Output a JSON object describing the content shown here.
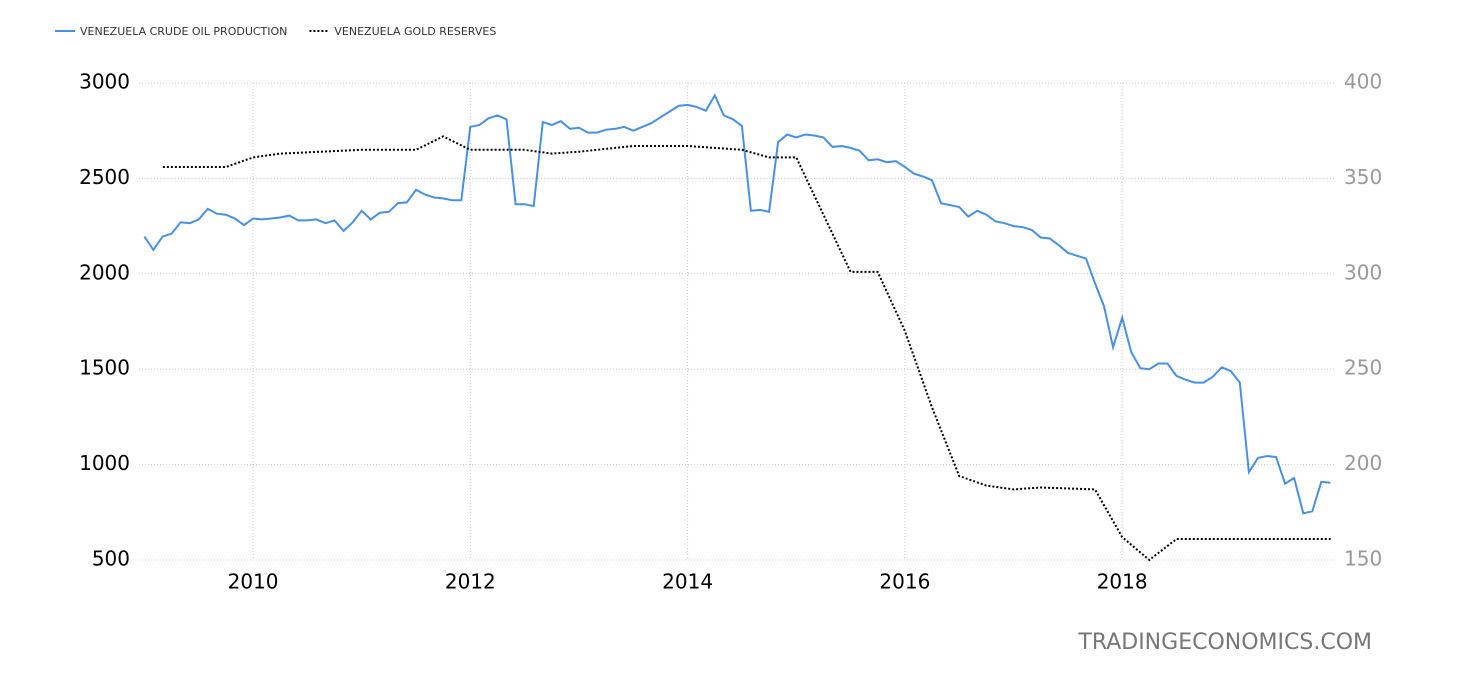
{
  "chart_data": {
    "type": "line",
    "watermark": "TRADINGECONOMICS.COM",
    "xlim": [
      2008.95,
      2019.95
    ],
    "xticks": [
      2010,
      2012,
      2014,
      2016,
      2018
    ],
    "ylim": [
      500,
      3000
    ],
    "yticks": [
      500,
      1000,
      1500,
      2000,
      2500,
      3000
    ],
    "y2lim": [
      150,
      400
    ],
    "y2ticks": [
      150,
      200,
      250,
      300,
      350,
      400
    ],
    "grid": true,
    "legend": "top-left",
    "series": [
      {
        "name": "VENEZUELA CRUDE OIL PRODUCTION",
        "color": "#4a90e2",
        "style": "solid",
        "x": [
          2009,
          2009.083,
          2009.167,
          2009.25,
          2009.333,
          2009.417,
          2009.5,
          2009.583,
          2009.667,
          2009.75,
          2009.833,
          2009.917,
          2010,
          2010.083,
          2010.167,
          2010.25,
          2010.333,
          2010.417,
          2010.5,
          2010.583,
          2010.667,
          2010.75,
          2010.833,
          2010.917,
          2011,
          2011.083,
          2011.167,
          2011.25,
          2011.333,
          2011.417,
          2011.5,
          2011.583,
          2011.667,
          2011.75,
          2011.833,
          2011.917,
          2012,
          2012.083,
          2012.167,
          2012.25,
          2012.333,
          2012.417,
          2012.5,
          2012.583,
          2012.667,
          2012.75,
          2012.833,
          2012.917,
          2013,
          2013.083,
          2013.167,
          2013.25,
          2013.333,
          2013.417,
          2013.5,
          2013.583,
          2013.667,
          2013.75,
          2013.833,
          2013.917,
          2014,
          2014.083,
          2014.167,
          2014.25,
          2014.333,
          2014.417,
          2014.5,
          2014.583,
          2014.667,
          2014.75,
          2014.833,
          2014.917,
          2015,
          2015.083,
          2015.167,
          2015.25,
          2015.333,
          2015.417,
          2015.5,
          2015.583,
          2015.667,
          2015.75,
          2015.833,
          2015.917,
          2016,
          2016.083,
          2016.167,
          2016.25,
          2016.333,
          2016.417,
          2016.5,
          2016.583,
          2016.667,
          2016.75,
          2016.833,
          2016.917,
          2017,
          2017.083,
          2017.167,
          2017.25,
          2017.333,
          2017.417,
          2017.5,
          2017.583,
          2017.667,
          2017.75,
          2017.833,
          2017.917,
          2018,
          2018.083,
          2018.167,
          2018.25,
          2018.333,
          2018.417,
          2018.5,
          2018.583,
          2018.667,
          2018.75,
          2018.833,
          2018.917,
          2019,
          2019.083,
          2019.167,
          2019.25,
          2019.333,
          2019.417,
          2019.5,
          2019.583,
          2019.667,
          2019.75,
          2019.833,
          2019.917
        ],
        "values": [
          2195,
          2125,
          2195,
          2210,
          2270,
          2265,
          2285,
          2340,
          2315,
          2310,
          2290,
          2255,
          2290,
          2285,
          2290,
          2295,
          2305,
          2280,
          2280,
          2285,
          2265,
          2280,
          2225,
          2270,
          2330,
          2285,
          2320,
          2325,
          2370,
          2375,
          2440,
          2415,
          2400,
          2395,
          2385,
          2385,
          2770,
          2780,
          2815,
          2830,
          2810,
          2365,
          2365,
          2355,
          2795,
          2780,
          2800,
          2760,
          2765,
          2740,
          2740,
          2755,
          2760,
          2770,
          2750,
          2770,
          2790,
          2820,
          2850,
          2880,
          2885,
          2875,
          2855,
          2935,
          2830,
          2810,
          2775,
          2330,
          2335,
          2325,
          2690,
          2730,
          2715,
          2730,
          2725,
          2715,
          2665,
          2670,
          2660,
          2645,
          2595,
          2600,
          2585,
          2590,
          2560,
          2525,
          2510,
          2490,
          2370,
          2360,
          2350,
          2300,
          2330,
          2310,
          2275,
          2265,
          2250,
          2245,
          2230,
          2190,
          2185,
          2150,
          2110,
          2095,
          2080,
          1950,
          1830,
          1615,
          1770,
          1590,
          1505,
          1500,
          1530,
          1530,
          1465,
          1445,
          1430,
          1430,
          1460,
          1510,
          1490,
          1430,
          960,
          1035,
          1045,
          1040,
          900,
          930,
          745,
          755,
          910,
          905
        ]
      },
      {
        "name": "VENEZUELA GOLD RESERVES",
        "color": "#000000",
        "style": "dotted",
        "axis": "y2",
        "x": [
          2009.17,
          2009.75,
          2010.0,
          2010.25,
          2011.0,
          2011.5,
          2011.75,
          2012.0,
          2012.5,
          2012.75,
          2013.0,
          2013.5,
          2014.0,
          2014.5,
          2014.75,
          2015.0,
          2015.5,
          2015.75,
          2016.0,
          2016.25,
          2016.5,
          2016.75,
          2017.0,
          2017.25,
          2017.75,
          2018.0,
          2018.25,
          2018.5,
          2019.92
        ],
        "values": [
          356,
          356,
          361,
          363,
          365,
          365,
          372,
          365,
          365,
          363,
          364,
          367,
          367,
          365,
          361,
          361,
          301,
          301,
          270,
          230,
          194,
          189,
          187,
          188,
          187,
          162,
          150,
          161,
          161
        ]
      }
    ]
  }
}
